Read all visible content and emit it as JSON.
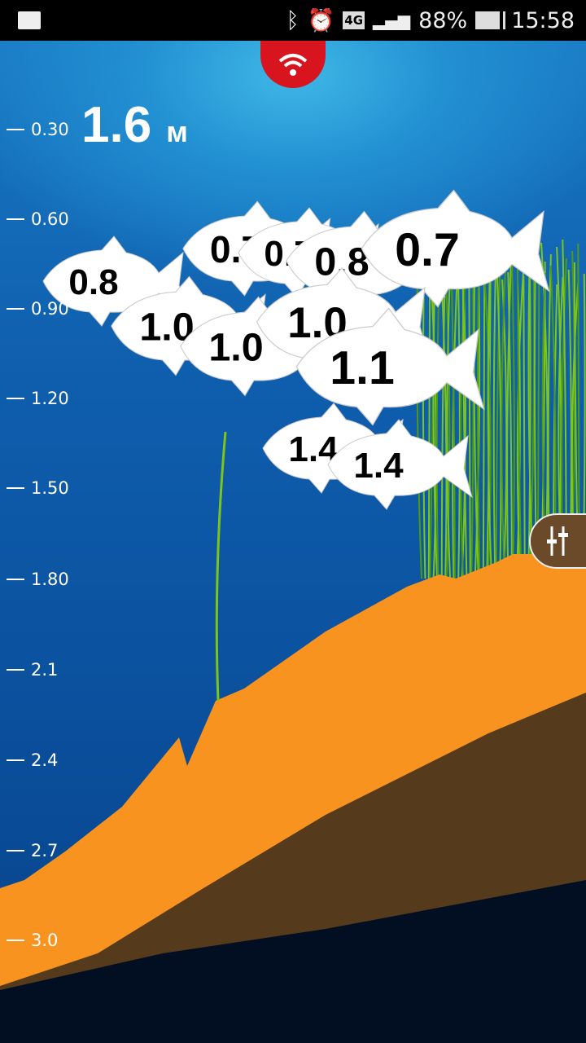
{
  "status_bar": {
    "battery": "88%",
    "time": "15:58",
    "network": "4G",
    "icons": [
      "gallery-icon",
      "bluetooth-icon",
      "alarm-icon",
      "4g-icon",
      "signal-icon",
      "battery-icon"
    ]
  },
  "connection": {
    "icon": "wifi-icon",
    "color": "#d8141e"
  },
  "depth": {
    "value": "1.6",
    "unit": "м"
  },
  "scale": [
    "0.30",
    "0.60",
    "0.90",
    "1.20",
    "1.50",
    "1.80",
    "2.1",
    "2.4",
    "2.7",
    "3.0"
  ],
  "fish": [
    "0.8",
    "0.7",
    "0.7",
    "0.8",
    "0.7",
    "1.0",
    "1.0",
    "1.0",
    "1.1",
    "1.4",
    "1.4"
  ],
  "colors": {
    "bottom": "#f7931e",
    "deep": "#020f22",
    "weed": "#7cc51a"
  },
  "settings": {
    "icon": "sliders-icon"
  }
}
